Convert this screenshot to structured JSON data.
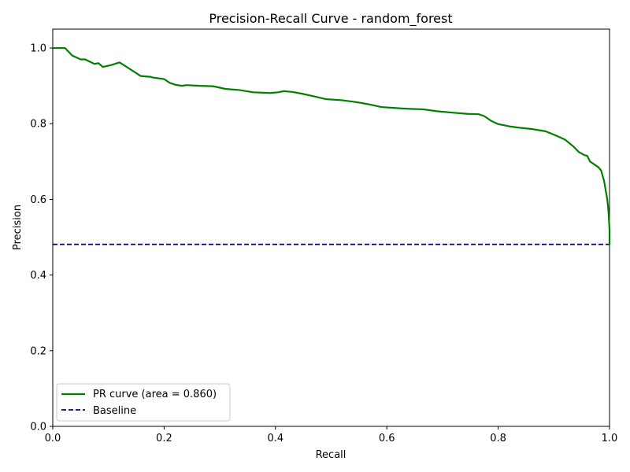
{
  "chart_data": {
    "type": "line",
    "title": "Precision-Recall Curve - random_forest",
    "xlabel": "Recall",
    "ylabel": "Precision",
    "xlim": [
      0.0,
      1.0
    ],
    "ylim": [
      0.0,
      1.05
    ],
    "x_ticks": [
      "0.0",
      "0.2",
      "0.4",
      "0.6",
      "0.8",
      "1.0"
    ],
    "y_ticks": [
      "0.0",
      "0.2",
      "0.4",
      "0.6",
      "0.8",
      "1.0"
    ],
    "grid": false,
    "legend_position": "lower-left",
    "series": [
      {
        "name": "PR curve (area = 0.860)",
        "color": "#008000",
        "style": "solid",
        "x": [
          0.0,
          0.022,
          0.035,
          0.05,
          0.058,
          0.075,
          0.082,
          0.09,
          0.105,
          0.12,
          0.138,
          0.158,
          0.175,
          0.18,
          0.2,
          0.21,
          0.22,
          0.232,
          0.24,
          0.265,
          0.288,
          0.31,
          0.335,
          0.36,
          0.39,
          0.405,
          0.415,
          0.43,
          0.445,
          0.47,
          0.49,
          0.52,
          0.545,
          0.565,
          0.59,
          0.62,
          0.645,
          0.665,
          0.69,
          0.72,
          0.745,
          0.765,
          0.775,
          0.788,
          0.8,
          0.82,
          0.84,
          0.86,
          0.885,
          0.905,
          0.92,
          0.935,
          0.945,
          0.955,
          0.96,
          0.965,
          0.975,
          0.98,
          0.985,
          0.99,
          0.993,
          0.996,
          0.998,
          1.0,
          1.0
        ],
        "y": [
          1.0,
          1.0,
          0.98,
          0.97,
          0.97,
          0.958,
          0.96,
          0.95,
          0.955,
          0.962,
          0.945,
          0.926,
          0.924,
          0.922,
          0.918,
          0.908,
          0.903,
          0.9,
          0.902,
          0.9,
          0.899,
          0.892,
          0.889,
          0.883,
          0.881,
          0.883,
          0.886,
          0.884,
          0.88,
          0.872,
          0.865,
          0.862,
          0.857,
          0.852,
          0.844,
          0.841,
          0.839,
          0.838,
          0.833,
          0.829,
          0.826,
          0.825,
          0.82,
          0.807,
          0.799,
          0.793,
          0.789,
          0.786,
          0.78,
          0.768,
          0.758,
          0.74,
          0.725,
          0.717,
          0.715,
          0.7,
          0.69,
          0.685,
          0.676,
          0.65,
          0.625,
          0.6,
          0.57,
          0.52,
          0.48
        ]
      },
      {
        "name": "Baseline",
        "color": "#000080",
        "style": "dashed",
        "x": [
          0.0,
          1.0
        ],
        "y": [
          0.481,
          0.481
        ]
      }
    ]
  }
}
